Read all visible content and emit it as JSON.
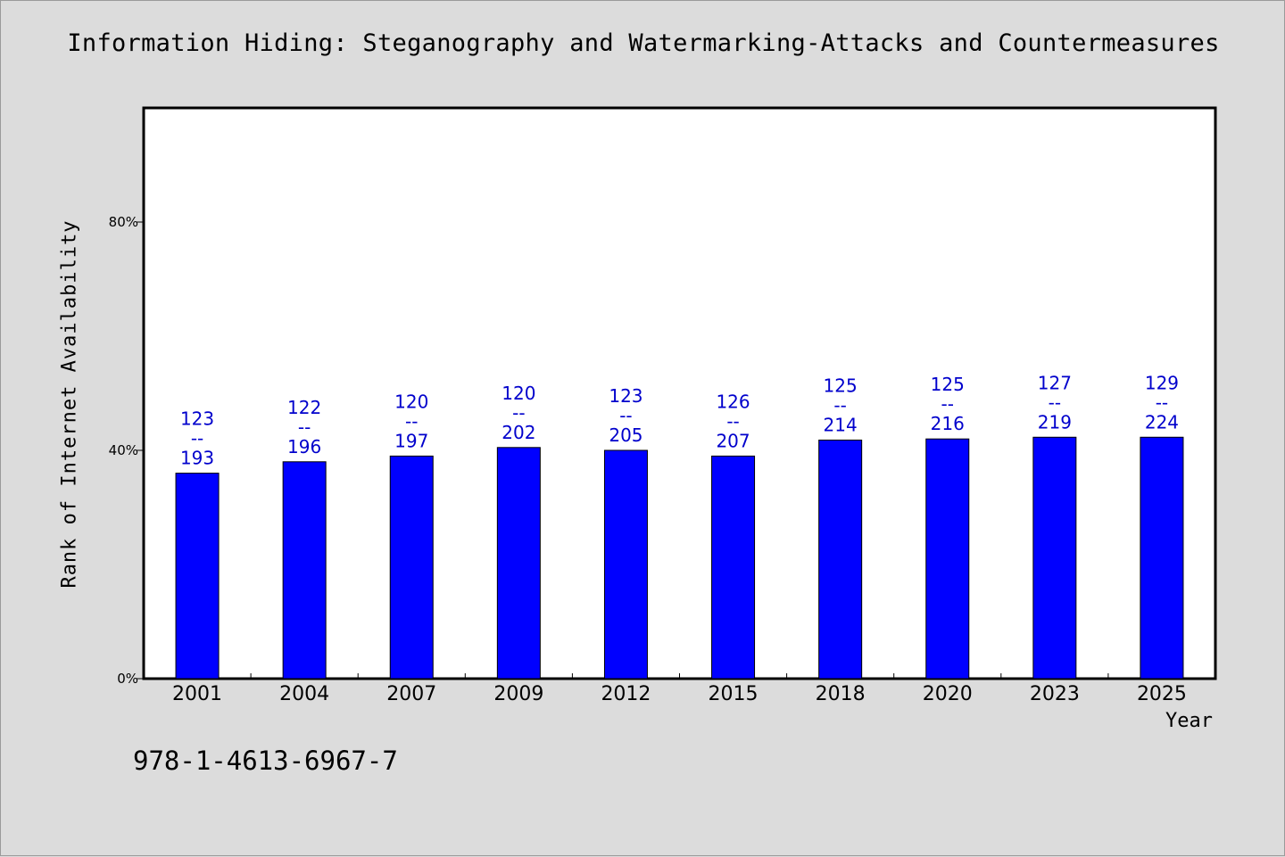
{
  "title": "Information Hiding: Steganography and Watermarking-Attacks and Countermeasures",
  "footer_text": "978-1-4613-6967-7",
  "colors": {
    "background": "#dcdcdc",
    "plot_background": "#ffffff",
    "bar": "#0000ff",
    "label": "#0000cc"
  },
  "chart_data": {
    "type": "bar",
    "title": "Information Hiding: Steganography and Watermarking-Attacks and Countermeasures",
    "xlabel": "Year",
    "ylabel": "Rank of Internet Availability",
    "ylim": [
      0,
      100
    ],
    "y_ticks": [
      {
        "value": 0,
        "label": "0%"
      },
      {
        "value": 40,
        "label": "40%"
      },
      {
        "value": 80,
        "label": "80%"
      }
    ],
    "grid": false,
    "categories": [
      "2001",
      "2004",
      "2007",
      "2009",
      "2012",
      "2015",
      "2018",
      "2020",
      "2023",
      "2025"
    ],
    "values": [
      36,
      38,
      39,
      40.5,
      40,
      39,
      41.8,
      42,
      42.3,
      42.3
    ],
    "bar_labels": [
      {
        "top": "123",
        "sep": "--",
        "bottom": "193"
      },
      {
        "top": "122",
        "sep": "--",
        "bottom": "196"
      },
      {
        "top": "120",
        "sep": "--",
        "bottom": "197"
      },
      {
        "top": "120",
        "sep": "--",
        "bottom": "202"
      },
      {
        "top": "123",
        "sep": "--",
        "bottom": "205"
      },
      {
        "top": "126",
        "sep": "--",
        "bottom": "207"
      },
      {
        "top": "125",
        "sep": "--",
        "bottom": "214"
      },
      {
        "top": "125",
        "sep": "--",
        "bottom": "216"
      },
      {
        "top": "127",
        "sep": "--",
        "bottom": "219"
      },
      {
        "top": "129",
        "sep": "--",
        "bottom": "224"
      }
    ]
  }
}
